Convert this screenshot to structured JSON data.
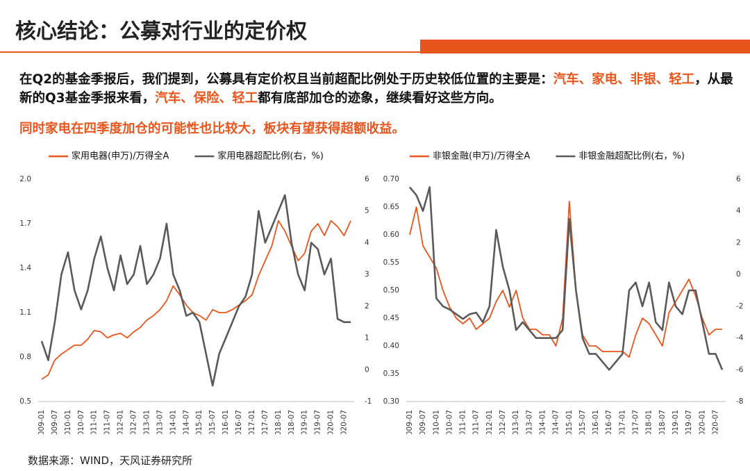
{
  "title": "核心结论：公募对行业的定价权",
  "paragraphs": [
    {
      "segments": [
        {
          "text": "在Q2的基金季报后，我们提到，公募具有定价权且当前超配比例处于历史较低位置的主要是：",
          "highlight": false
        },
        {
          "text": "汽车、家电、非银、轻工",
          "highlight": true
        },
        {
          "text": "，从最新的Q3基金季报来看，",
          "highlight": false
        },
        {
          "text": "汽车、保险、轻工",
          "highlight": true
        },
        {
          "text": "都有底部加仓的迹象，继续看好这些方向。",
          "highlight": false
        }
      ]
    },
    {
      "segments": [
        {
          "text": "同时家电在四季度加仓的可能性也比较大，板块有望获得超额收益。",
          "highlight": true
        }
      ]
    }
  ],
  "chart_data": [
    {
      "type": "line",
      "categories": [
        "2009-01",
        null,
        "2009-07",
        null,
        "2010-01",
        null,
        "2010-07",
        null,
        "2011-01",
        null,
        "2011-07",
        null,
        "2012-01",
        null,
        "2012-07",
        null,
        "2013-01",
        null,
        "2013-07",
        null,
        "2014-01",
        null,
        "2014-07",
        null,
        "2015-01",
        null,
        "2015-07",
        null,
        "2016-01",
        null,
        "2016-07",
        null,
        "2017-01",
        null,
        "2017-07",
        null,
        "2018-01",
        null,
        "2018-07",
        null,
        "2019-01",
        null,
        "2019-07",
        null,
        "2020-01",
        null,
        "2020-07",
        null
      ],
      "ylim": [
        0.5,
        2.0
      ],
      "yticks": [
        0.5,
        0.8,
        1.1,
        1.4,
        1.7,
        {
          "value": 2,
          "label": "2.0"
        }
      ],
      "y2lim": [
        -1,
        6
      ],
      "y2ticks": [
        -1,
        0,
        1,
        2,
        3,
        4,
        5,
        6
      ],
      "series": [
        {
          "name": "家用电器(申万)/万得全A",
          "color": "#e8561e",
          "values": [
            0.65,
            0.68,
            0.78,
            0.82,
            0.85,
            0.88,
            0.88,
            0.92,
            0.98,
            0.97,
            0.93,
            0.95,
            0.96,
            0.93,
            0.97,
            1.0,
            1.05,
            1.08,
            1.12,
            1.18,
            1.28,
            1.22,
            1.15,
            1.1,
            1.08,
            1.05,
            1.12,
            1.1,
            1.1,
            1.12,
            1.15,
            1.18,
            1.22,
            1.35,
            1.45,
            1.55,
            1.72,
            1.65,
            1.55,
            1.45,
            1.5,
            1.65,
            1.7,
            1.62,
            1.72,
            1.68,
            1.62,
            1.72
          ]
        },
        {
          "name": "家用电器超配比例(右，%)",
          "color": "#595959",
          "axis": "y2",
          "values": [
            0.9,
            0.3,
            1.5,
            3.0,
            3.7,
            2.5,
            1.9,
            2.5,
            3.5,
            4.2,
            3.2,
            2.5,
            3.6,
            2.7,
            3.0,
            3.9,
            2.7,
            3.0,
            3.5,
            4.6,
            3.0,
            2.5,
            1.7,
            1.8,
            1.5,
            0.5,
            -0.5,
            0.5,
            1.0,
            1.5,
            2.0,
            2.3,
            3.0,
            5.0,
            4.0,
            4.5,
            5.0,
            5.5,
            4.0,
            3.0,
            2.5,
            4.0,
            3.8,
            3.0,
            3.5,
            1.6,
            1.5,
            1.5
          ]
        }
      ]
    },
    {
      "type": "line",
      "categories": [
        "2009-01",
        null,
        "2009-07",
        null,
        "2010-01",
        null,
        "2010-07",
        null,
        "2011-01",
        null,
        "2011-07",
        null,
        "2012-01",
        null,
        "2012-07",
        null,
        "2013-01",
        null,
        "2013-07",
        null,
        "2014-01",
        null,
        "2014-07",
        null,
        "2015-01",
        null,
        "2015-07",
        null,
        "2016-01",
        null,
        "2016-07",
        null,
        "2017-01",
        null,
        "2017-07",
        null,
        "2018-01",
        null,
        "2018-07",
        null,
        "2019-01",
        null,
        "2019-07",
        null,
        "2020-01",
        null,
        "2020-07",
        null
      ],
      "ylim": [
        0.3,
        0.7
      ],
      "yticks": [
        {
          "value": 0.3,
          "label": "0.30"
        },
        0.35,
        {
          "value": 0.4,
          "label": "0.40"
        },
        0.45,
        {
          "value": 0.5,
          "label": "0.50"
        },
        0.55,
        {
          "value": 0.6,
          "label": "0.60"
        },
        0.65,
        {
          "value": 0.7,
          "label": "0.70"
        }
      ],
      "y2lim": [
        -8,
        6
      ],
      "y2ticks": [
        -8,
        -6,
        -4,
        -2,
        0,
        2,
        4,
        6
      ],
      "series": [
        {
          "name": "非银金融(申万)/万得全A",
          "color": "#e8561e",
          "values": [
            0.6,
            0.65,
            0.58,
            0.56,
            0.54,
            0.5,
            0.47,
            0.45,
            0.44,
            0.45,
            0.43,
            0.44,
            0.45,
            0.48,
            0.5,
            0.47,
            0.5,
            0.45,
            0.43,
            0.43,
            0.42,
            0.42,
            0.4,
            0.45,
            0.66,
            0.5,
            0.42,
            0.4,
            0.4,
            0.39,
            0.39,
            0.39,
            0.39,
            0.38,
            0.42,
            0.45,
            0.44,
            0.42,
            0.4,
            0.46,
            0.48,
            0.5,
            0.52,
            0.49,
            0.45,
            0.42,
            0.43,
            0.43
          ]
        },
        {
          "name": "非银金融超配比例(右，%)",
          "color": "#595959",
          "axis": "y2",
          "values": [
            5.5,
            5.0,
            4.0,
            5.5,
            -1.5,
            -2.0,
            -2.2,
            -2.5,
            -2.8,
            -2.5,
            -2.4,
            -3.0,
            -2.0,
            2.8,
            0.5,
            -1.0,
            -3.5,
            -3.0,
            -3.5,
            -4.0,
            -4.0,
            -4.0,
            -4.0,
            -3.5,
            3.5,
            -1.0,
            -4.0,
            -5.0,
            -5.0,
            -5.5,
            -6.0,
            -5.5,
            -5.0,
            -1.0,
            -0.5,
            -2.0,
            -0.5,
            -3.0,
            -3.5,
            -0.5,
            -2.0,
            -2.5,
            -1.0,
            -1.0,
            -3.0,
            -5.0,
            -5.0,
            -6.0
          ]
        }
      ]
    }
  ],
  "source": "数据来源：WIND，天风证券研究所"
}
